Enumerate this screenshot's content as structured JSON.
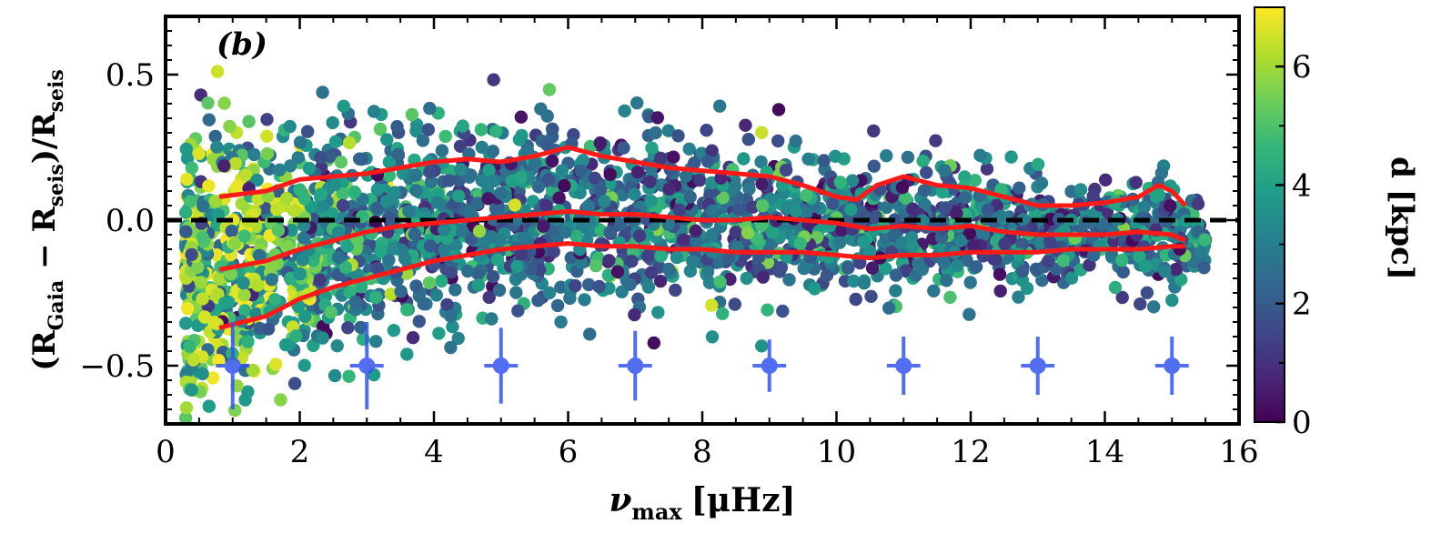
{
  "chart_data": {
    "type": "scatter",
    "panel_label": "(b)",
    "xlabel": {
      "main": "ν",
      "sub": "max",
      "unit": "[μHz]"
    },
    "ylabel": {
      "open": "(R",
      "sub1": "Gaia",
      "minus": " − R",
      "sub2": "seis",
      "close": ")/R",
      "sub3": "seis"
    },
    "xlim": [
      0,
      16
    ],
    "ylim": [
      -0.7,
      0.7
    ],
    "xticks": [
      0,
      2,
      4,
      6,
      8,
      10,
      12,
      14,
      16
    ],
    "xtick_labels": [
      "0",
      "2",
      "4",
      "6",
      "8",
      "10",
      "12",
      "14",
      "16"
    ],
    "yticks": [
      -0.5,
      0.0,
      0.5
    ],
    "ytick_labels": [
      "−0.5",
      "0.0",
      "0.5"
    ],
    "reference_line": {
      "y": 0.0,
      "style": "dashed",
      "color": "#000000"
    },
    "colorbar": {
      "label": "d [kpc]",
      "range": [
        0,
        7
      ],
      "ticks": [
        0,
        2,
        4,
        6
      ],
      "tick_labels": [
        "0",
        "2",
        "4",
        "6"
      ],
      "colormap": "viridis",
      "stops": [
        "#440154",
        "#482878",
        "#3e4989",
        "#31688e",
        "#26828e",
        "#1f9e89",
        "#35b779",
        "#6ece58",
        "#b5de2b",
        "#fde725"
      ]
    },
    "scatter_series": {
      "name": "stars",
      "count": 2600,
      "x_range": [
        0.3,
        15.5
      ],
      "marker_color_by": "distance (kpc)"
    },
    "percentile_lines": {
      "color": "#ff1a1a",
      "series": [
        {
          "name": "upper",
          "x": [
            0.8,
            1.5,
            2.0,
            2.5,
            3.0,
            3.5,
            4.0,
            4.5,
            5.0,
            5.5,
            6.0,
            6.5,
            7.0,
            7.5,
            8.0,
            8.5,
            9.0,
            9.5,
            10.0,
            10.3,
            10.6,
            11.0,
            11.5,
            12.0,
            12.5,
            13.0,
            13.5,
            14.0,
            14.5,
            14.8,
            15.0,
            15.2
          ],
          "y": [
            0.08,
            0.1,
            0.14,
            0.15,
            0.16,
            0.18,
            0.2,
            0.21,
            0.2,
            0.22,
            0.25,
            0.22,
            0.2,
            0.18,
            0.17,
            0.16,
            0.15,
            0.12,
            0.08,
            0.07,
            0.12,
            0.15,
            0.12,
            0.11,
            0.08,
            0.05,
            0.05,
            0.06,
            0.08,
            0.12,
            0.1,
            0.05
          ]
        },
        {
          "name": "median",
          "x": [
            0.8,
            1.5,
            2.0,
            2.5,
            3.0,
            3.5,
            4.0,
            4.5,
            5.0,
            5.5,
            6.0,
            6.5,
            7.0,
            7.5,
            8.0,
            8.5,
            9.0,
            9.5,
            10.0,
            10.5,
            11.0,
            11.5,
            12.0,
            12.5,
            13.0,
            13.5,
            14.0,
            14.5,
            15.0,
            15.2
          ],
          "y": [
            -0.17,
            -0.14,
            -0.1,
            -0.07,
            -0.04,
            -0.02,
            -0.01,
            0.0,
            0.01,
            0.02,
            0.03,
            0.02,
            0.02,
            0.01,
            0.0,
            0.0,
            0.01,
            0.0,
            -0.01,
            -0.03,
            -0.02,
            -0.03,
            -0.02,
            -0.04,
            -0.05,
            -0.05,
            -0.05,
            -0.04,
            -0.05,
            -0.07
          ]
        },
        {
          "name": "lower",
          "x": [
            0.8,
            1.5,
            2.0,
            2.5,
            3.0,
            3.5,
            4.0,
            4.5,
            5.0,
            5.5,
            6.0,
            6.5,
            7.0,
            7.5,
            8.0,
            8.5,
            9.0,
            9.5,
            10.0,
            10.5,
            11.0,
            11.5,
            12.0,
            12.5,
            13.0,
            13.5,
            14.0,
            14.5,
            15.0,
            15.2
          ],
          "y": [
            -0.37,
            -0.33,
            -0.27,
            -0.23,
            -0.2,
            -0.17,
            -0.14,
            -0.12,
            -0.1,
            -0.09,
            -0.08,
            -0.09,
            -0.09,
            -0.1,
            -0.1,
            -0.11,
            -0.11,
            -0.11,
            -0.12,
            -0.13,
            -0.12,
            -0.12,
            -0.11,
            -0.11,
            -0.11,
            -0.1,
            -0.1,
            -0.1,
            -0.09,
            -0.09
          ]
        }
      ]
    },
    "error_bars": {
      "color": "#3355ee",
      "x": [
        1,
        3,
        5,
        7,
        9,
        11,
        13,
        15
      ],
      "y": [
        -0.5,
        -0.5,
        -0.5,
        -0.5,
        -0.5,
        -0.5,
        -0.5,
        -0.5
      ],
      "xerr": [
        0.25,
        0.25,
        0.25,
        0.25,
        0.25,
        0.25,
        0.25,
        0.25
      ],
      "yerr": [
        0.15,
        0.15,
        0.13,
        0.12,
        0.09,
        0.1,
        0.1,
        0.1
      ]
    }
  }
}
